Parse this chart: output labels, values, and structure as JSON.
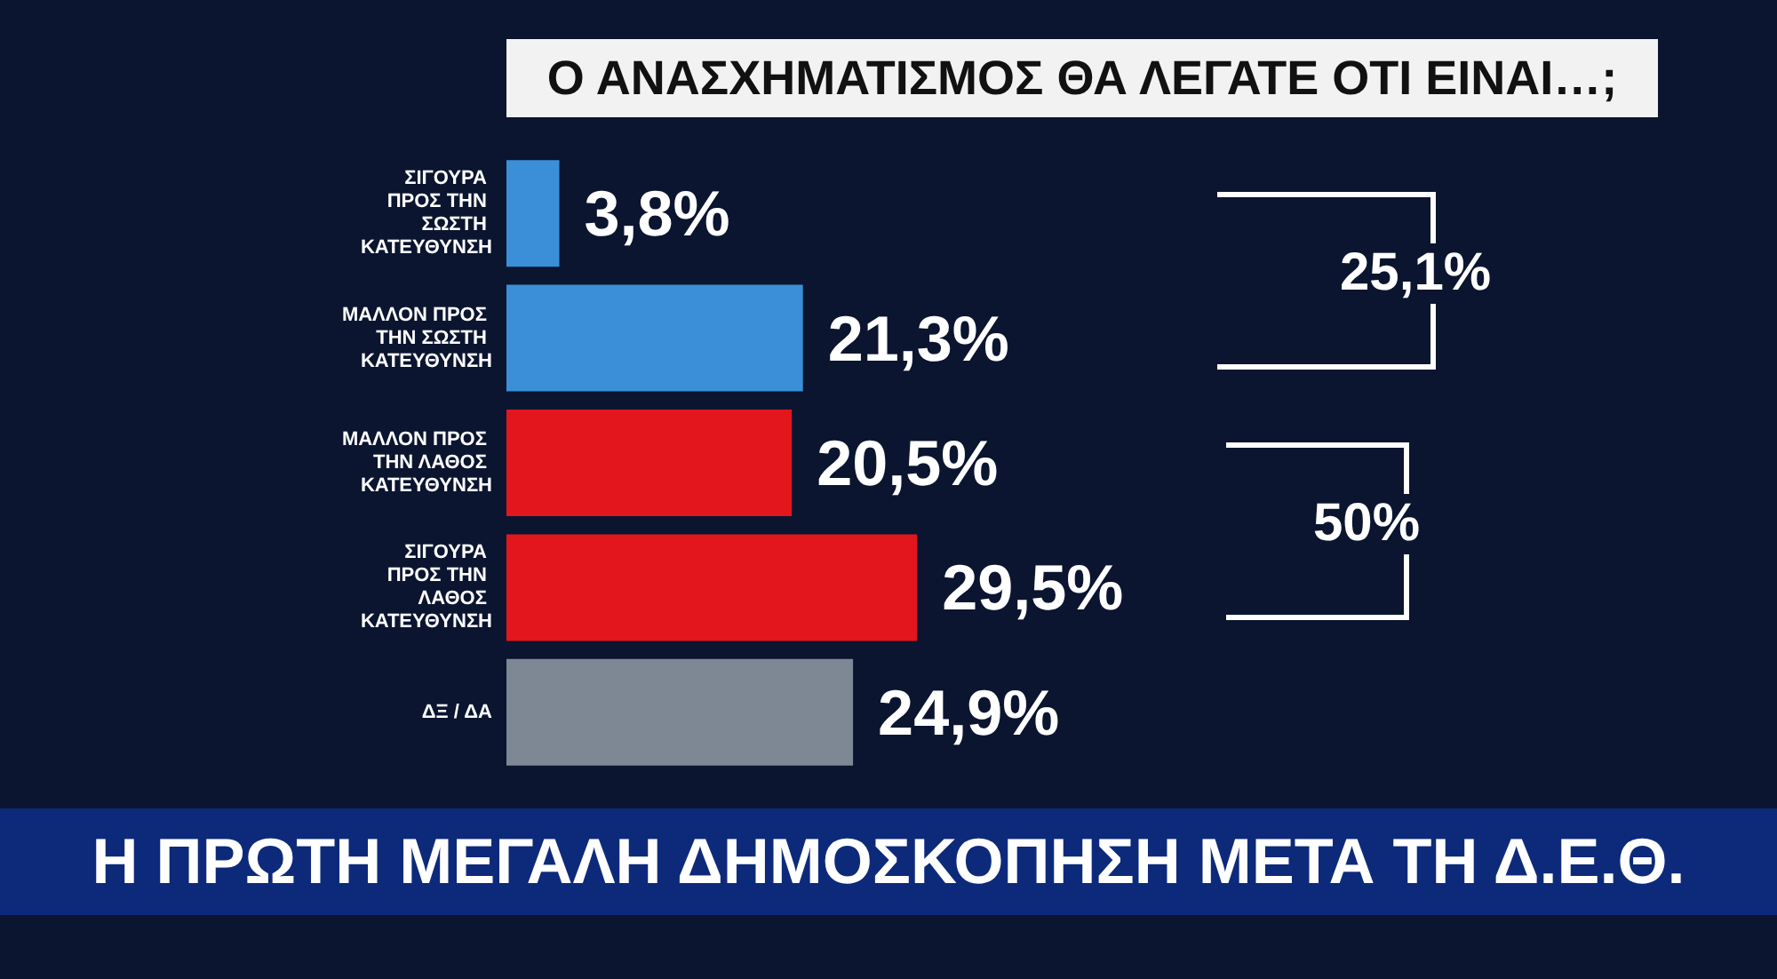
{
  "chart_data": {
    "type": "bar",
    "orientation": "horizontal",
    "title": "Ο ΑΝΑΣΧΗΜΑΤΙΣΜΟΣ  ΘΑ ΛΕΓΑΤΕ ΟΤΙ ΕΙΝΑΙ…;",
    "subtitle": "Η ΠΡΩΤΗ ΜΕΓΑΛΗ ΔΗΜΟΣΚΟΠΗΣΗ ΜΕΤΑ ΤΗ Δ.Ε.Θ.",
    "categories": [
      "ΣΙΓΟΥΡΑ ΠΡΟΣ ΤΗΝ ΣΩΣΤΗ ΚΑΤΕΥΘΥΝΣΗ",
      "ΜΑΛΛΟΝ ΠΡΟΣ ΤΗΝ ΣΩΣΤΗ ΚΑΤΕΥΘΥΝΣΗ",
      "ΜΑΛΛΟΝ ΠΡΟΣ ΤΗΝ ΛΑΘΟΣ ΚΑΤΕΥΘΥΝΣΗ",
      "ΣΙΓΟΥΡΑ ΠΡΟΣ ΤΗΝ ΛΑΘΟΣ ΚΑΤΕΥΘΥΝΣΗ",
      "ΔΞ / ΔΑ"
    ],
    "values": [
      3.8,
      21.3,
      20.5,
      29.5,
      24.9
    ],
    "value_labels": [
      "3,8%",
      "21,3%",
      "20,5%",
      "29,5%",
      "24,9%"
    ],
    "colors": [
      "#3a8fd8",
      "#3a8fd8",
      "#e3161d",
      "#e3161d",
      "#7d8894"
    ],
    "annotations": [
      "25,1%",
      "50%"
    ]
  }
}
